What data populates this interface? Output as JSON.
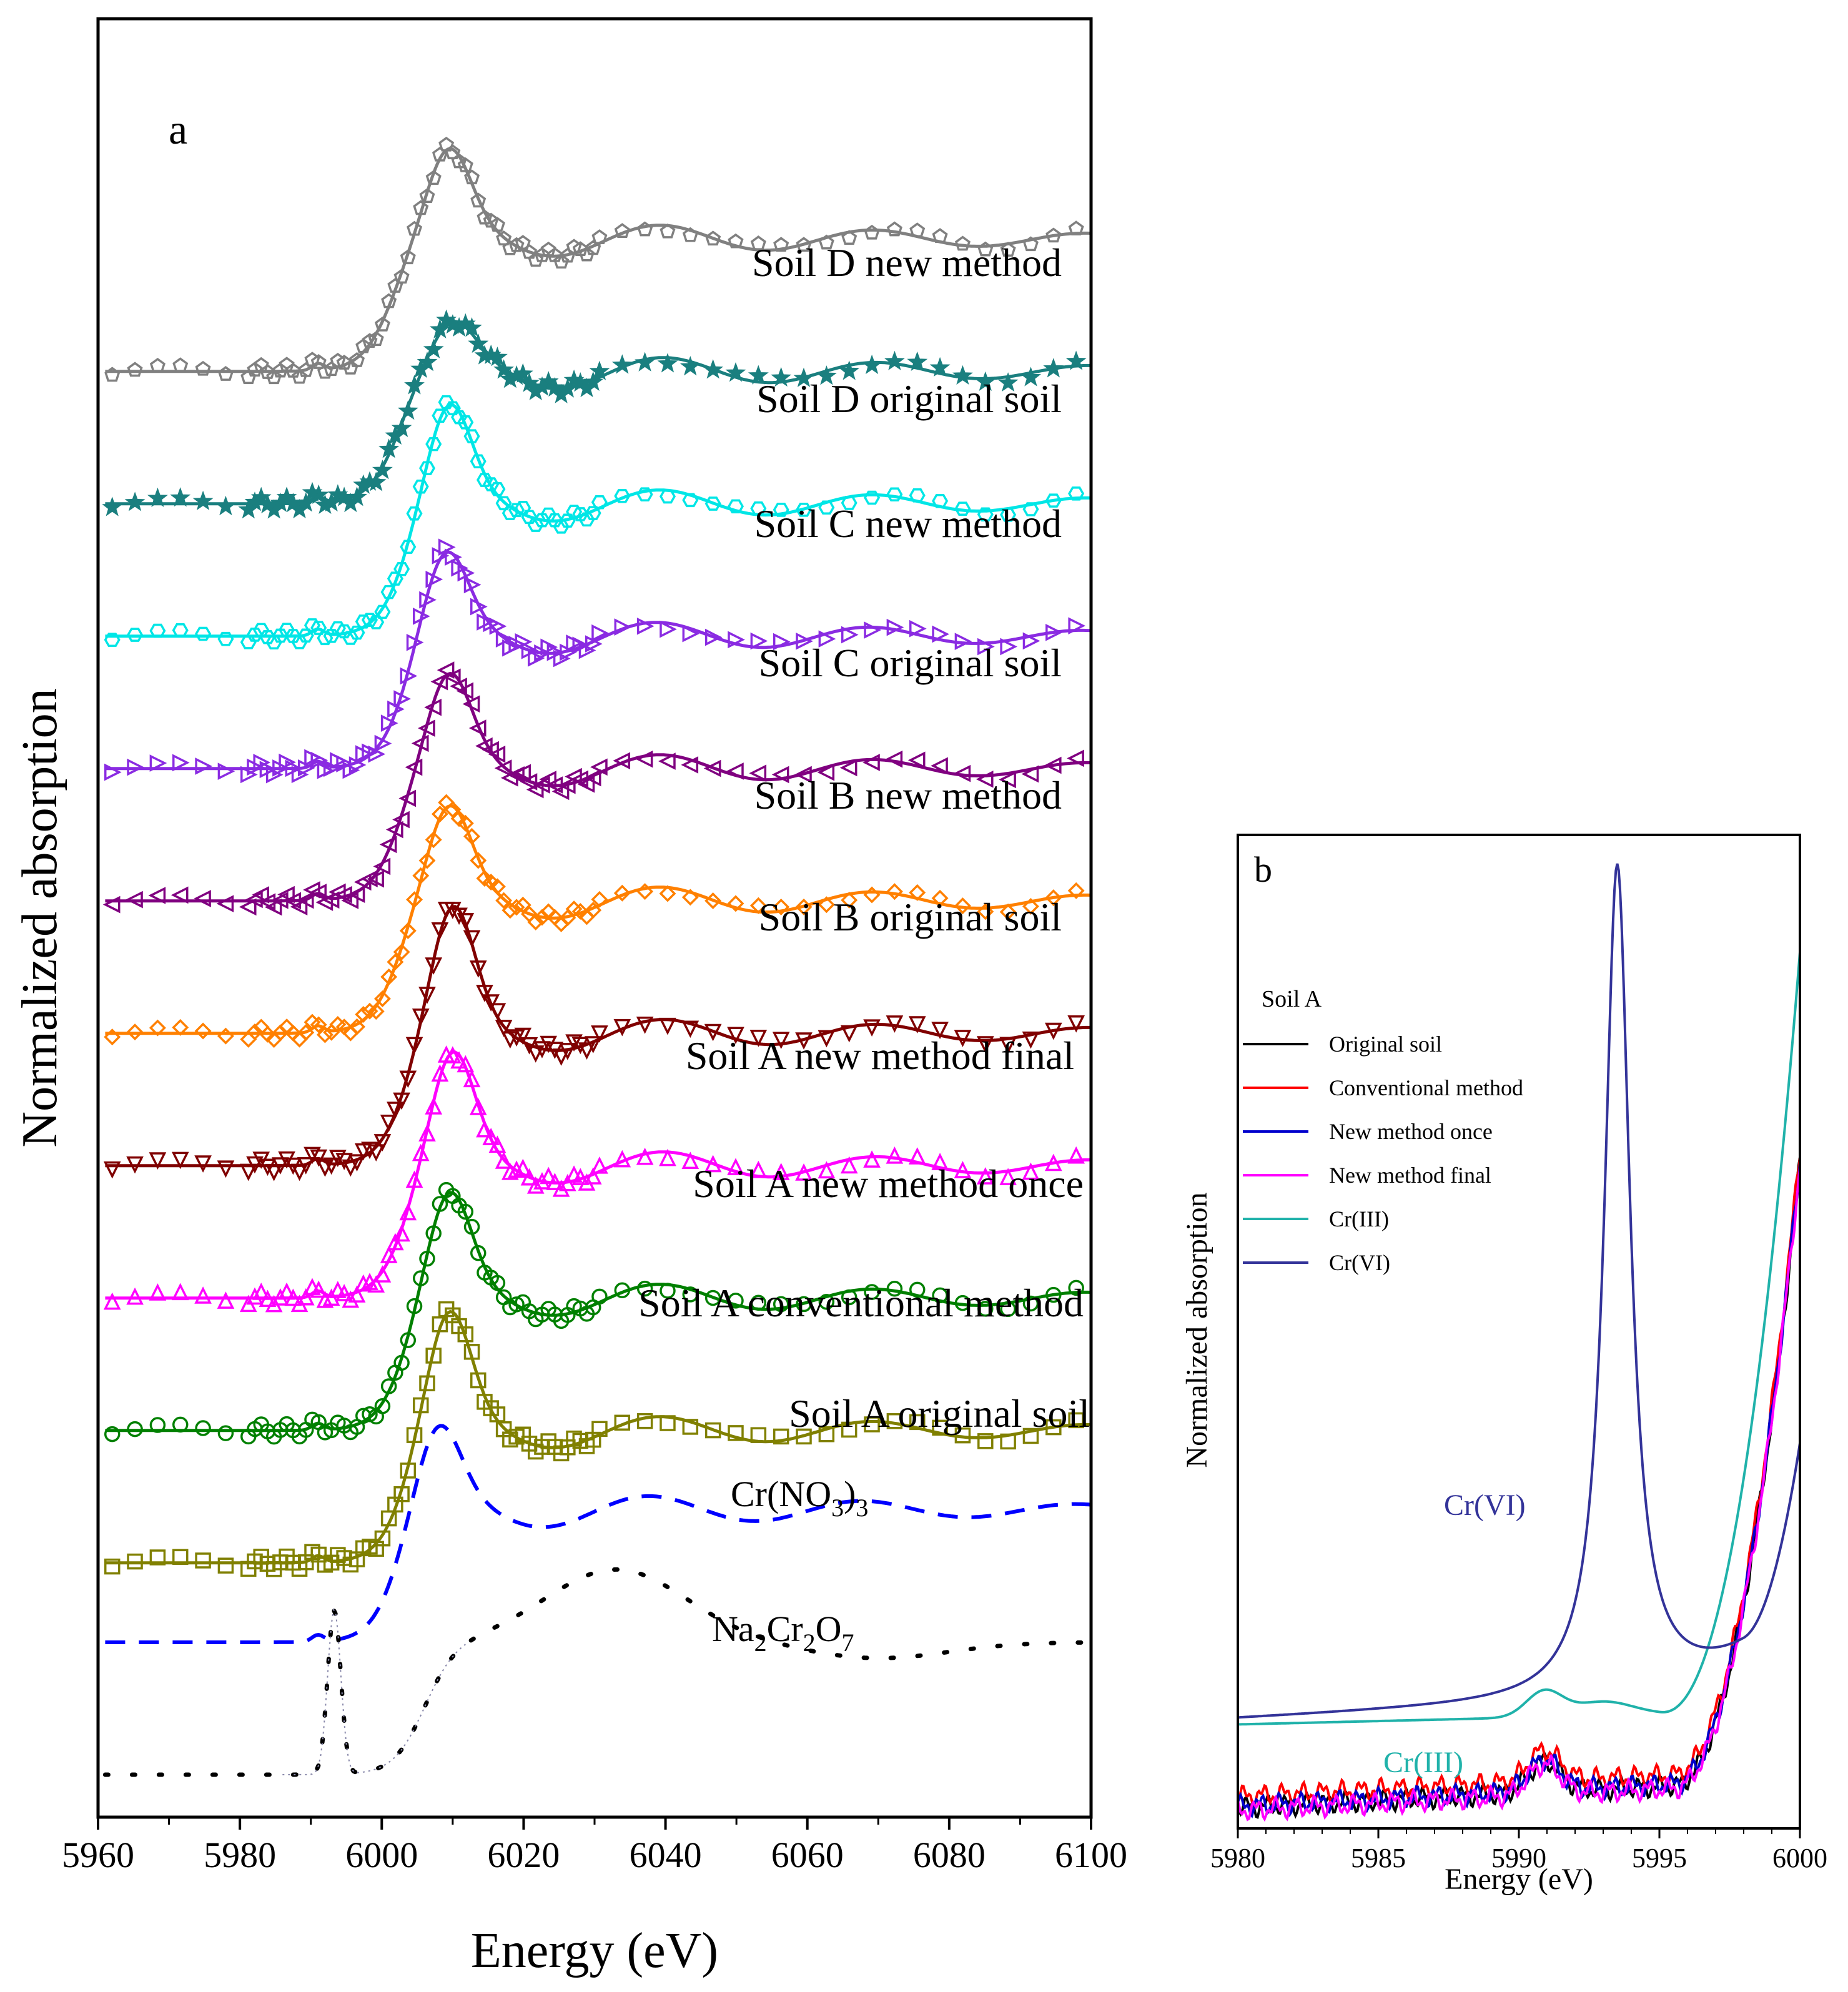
{
  "chart_data": [
    {
      "type": "line",
      "panel_label": "a",
      "xlabel": "Energy (eV)",
      "ylabel": "Normalized absorption",
      "xlim": [
        5960,
        6100
      ],
      "xticks": [
        5960,
        5980,
        6000,
        6020,
        6040,
        6060,
        6080,
        6100
      ],
      "x_tick_labels": [
        "5960",
        "5980",
        "6000",
        "6020",
        "6040",
        "6060",
        "6080",
        "6100"
      ],
      "series": [
        {
          "name": "Soil D new method",
          "color": "#808080",
          "marker": "pentagon",
          "offset": 9.6,
          "edge": 6001,
          "peak": 6009.5,
          "peak_height": 1.55,
          "pre_edge": 0.06
        },
        {
          "name": "Soil D original soil",
          "color": "#1a7f7f",
          "marker": "star",
          "offset": 8.6,
          "edge": 6002,
          "peak": 6010,
          "peak_height": 1.25,
          "pre_edge": 0.55
        },
        {
          "name": "Soil C new method",
          "color": "#00e6e6",
          "marker": "hexagon",
          "offset": 7.6,
          "edge": 6003,
          "peak": 6009.5,
          "peak_height": 1.65,
          "pre_edge": 0.08
        },
        {
          "name": "Soil C original soil",
          "color": "#8a2be2",
          "marker": "triangle-right",
          "offset": 6.6,
          "edge": 6003,
          "peak": 6009,
          "peak_height": 1.55,
          "pre_edge": 0.1
        },
        {
          "name": "Soil B new method",
          "color": "#800080",
          "marker": "triangle-left",
          "offset": 5.6,
          "edge": 6002,
          "peak": 6009.5,
          "peak_height": 1.6,
          "pre_edge": 0.08
        },
        {
          "name": "Soil B original soil",
          "color": "#ff8000",
          "marker": "diamond",
          "offset": 4.6,
          "edge": 6002,
          "peak": 6009.5,
          "peak_height": 1.6,
          "pre_edge": 0.15
        },
        {
          "name": "Soil A new method final",
          "color": "#800000",
          "marker": "triangle-down",
          "offset": 3.6,
          "edge": 6003,
          "peak": 6010,
          "peak_height": 1.85,
          "pre_edge": 0.06
        },
        {
          "name": "Soil A new method once",
          "color": "#ff00ff",
          "marker": "triangle-up",
          "offset": 2.6,
          "edge": 6003,
          "peak": 6010,
          "peak_height": 1.75,
          "pre_edge": 0.06
        },
        {
          "name": "Soil A conventional method",
          "color": "#008000",
          "marker": "circle",
          "offset": 1.6,
          "edge": 6003,
          "peak": 6009.5,
          "peak_height": 1.7,
          "pre_edge": 0.06
        },
        {
          "name": "Soil A original soil",
          "color": "#808000",
          "marker": "square",
          "offset": 0.6,
          "edge": 6003,
          "peak": 6009.5,
          "peak_height": 1.8,
          "pre_edge": 0.02
        },
        {
          "name": "Cr(NO3)3",
          "color": "#0000ff",
          "style": "dashed",
          "offset": 0.0,
          "edge": 6002,
          "peak": 6008,
          "peak_height": 1.55,
          "pre_edge": 0.06
        },
        {
          "name": "Na2Cr2O7",
          "color": "#000000",
          "style": "dotted",
          "offset": -1.0,
          "edge": 6006,
          "peak": 6033,
          "peak_height": 1.55,
          "pre_edge": 1.25
        }
      ],
      "labels": [
        {
          "text": "Soil D new method"
        },
        {
          "text": "Soil D original soil"
        },
        {
          "text": "Soil C new method"
        },
        {
          "text": "Soil C original soil"
        },
        {
          "text": "Soil B new method"
        },
        {
          "text": "Soil B original soil"
        },
        {
          "text": "Soil A new method final"
        },
        {
          "text": "Soil A new method once"
        },
        {
          "text": "Soil A conventional method"
        },
        {
          "text": "Soil A original soil"
        }
      ],
      "formula_labels": {
        "cr_nitrate": {
          "a": "Cr(NO",
          "sub1": "3",
          "b": ")",
          "sub2": "3"
        },
        "na_dichromate": {
          "a": "Na",
          "sub1": "2",
          "b": "Cr",
          "sub2": "2",
          "c": "O",
          "sub3": "7"
        }
      }
    },
    {
      "type": "line",
      "panel_label": "b",
      "xlabel": "Energy (eV)",
      "ylabel": "Normalized absorption",
      "xlim": [
        5980,
        6000
      ],
      "xticks": [
        5980,
        5985,
        5990,
        5995,
        6000
      ],
      "x_tick_labels": [
        "5980",
        "5985",
        "5990",
        "5995",
        "6000"
      ],
      "legend_title": "Soil A",
      "legend_position": "top-left",
      "series": [
        {
          "name": "Original soil",
          "color": "#000000"
        },
        {
          "name": "Conventional method",
          "color": "#ff0000"
        },
        {
          "name": "New method once",
          "color": "#0000cc"
        },
        {
          "name": "New method final",
          "color": "#ff00ff"
        },
        {
          "name": "Cr(III)",
          "color": "#20b2aa"
        },
        {
          "name": "Cr(VI)",
          "color": "#333399"
        }
      ],
      "annotations": [
        {
          "text": "Cr(VI)",
          "color": "#333399"
        },
        {
          "text": "Cr(III)",
          "color": "#20b2aa"
        }
      ]
    }
  ]
}
